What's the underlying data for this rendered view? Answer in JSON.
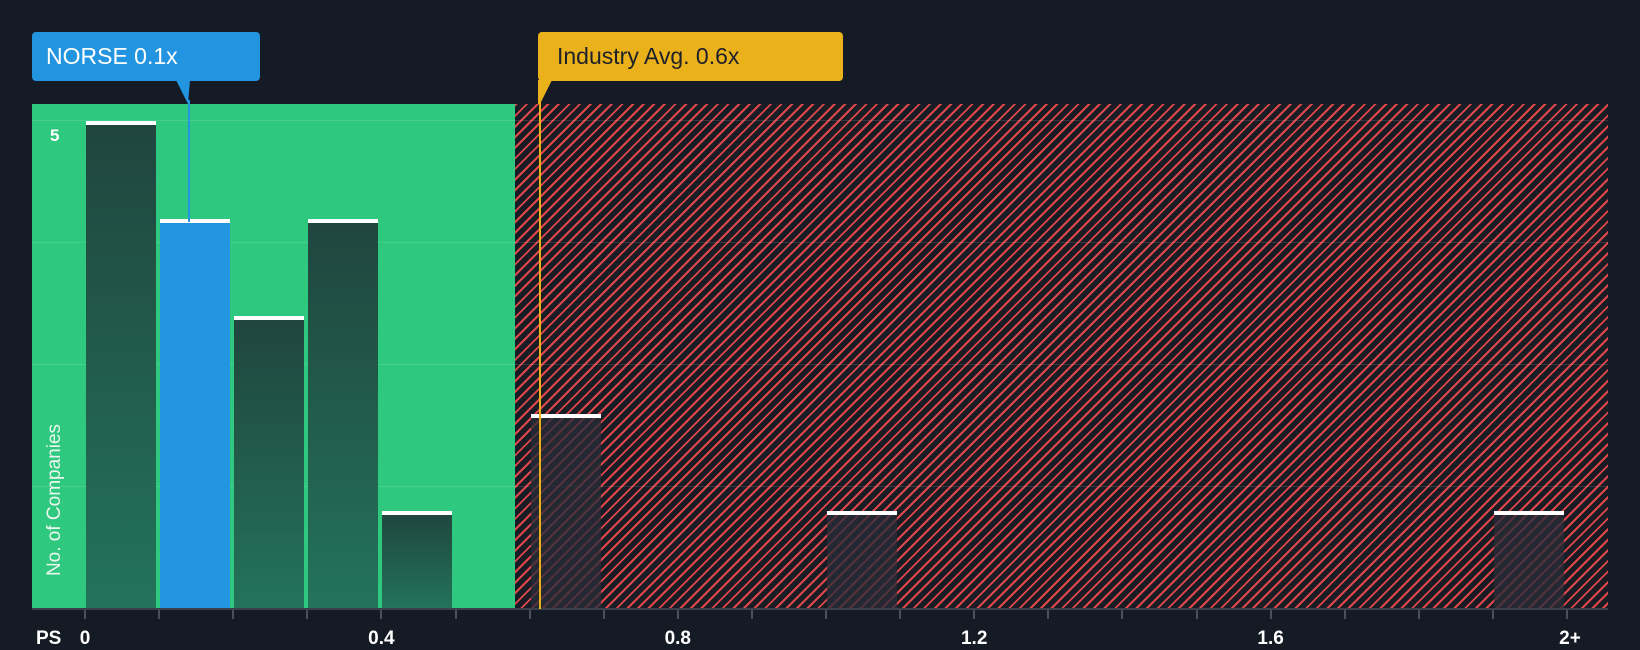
{
  "chart_data": {
    "type": "bar",
    "title": "",
    "xlabel": "PS",
    "ylabel": "No. of Companies",
    "x_tick_labels": [
      "0",
      "0.4",
      "0.8",
      "1.2",
      "1.6",
      "2+"
    ],
    "x_tick_values": [
      0,
      0.4,
      0.8,
      1.2,
      1.6,
      2.0
    ],
    "y_tick_labels": [
      "5"
    ],
    "ylim": [
      0,
      5
    ],
    "xlim": [
      0,
      2.1
    ],
    "bin_width": 0.1,
    "bins": [
      {
        "start": 0.0,
        "end": 0.1,
        "count": 5
      },
      {
        "start": 0.1,
        "end": 0.2,
        "count": 4,
        "highlight": true
      },
      {
        "start": 0.2,
        "end": 0.3,
        "count": 3
      },
      {
        "start": 0.3,
        "end": 0.4,
        "count": 4
      },
      {
        "start": 0.4,
        "end": 0.5,
        "count": 1
      },
      {
        "start": 0.6,
        "end": 0.7,
        "count": 2
      },
      {
        "start": 1.0,
        "end": 1.1,
        "count": 1
      },
      {
        "start": 1.9,
        "end": 2.0,
        "count": 1
      }
    ],
    "markers": [
      {
        "name": "company",
        "label": "NORSE 0.1x",
        "value": 0.14,
        "color": "#2394df"
      },
      {
        "name": "industry",
        "label": "Industry Avg. 0.6x",
        "value": 0.61,
        "color": "#ebb11a"
      }
    ],
    "zones": [
      {
        "name": "good",
        "from": 0,
        "to": 0.58,
        "color": "#2ec97f"
      },
      {
        "name": "bad",
        "from": 0.58,
        "to": 2.1,
        "color": "#e0474a",
        "pattern": "hatched"
      }
    ],
    "grid": true,
    "gridlines_y": [
      5,
      3.75,
      2.5,
      1.25
    ]
  },
  "labels": {
    "company_callout": "NORSE 0.1x",
    "industry_callout": "Industry Avg. 0.6x",
    "x_axis_prefix": "PS",
    "y_axis_title": "No. of Companies",
    "y_tick_5": "5",
    "x_ticks": [
      "0",
      "0.4",
      "0.8",
      "1.2",
      "1.6",
      "2+"
    ]
  },
  "colors": {
    "background": "#151b24",
    "good_zone": "#2ec97f",
    "bad_hatch": "#e0474a",
    "company": "#2394df",
    "industry": "#ebb11a"
  }
}
